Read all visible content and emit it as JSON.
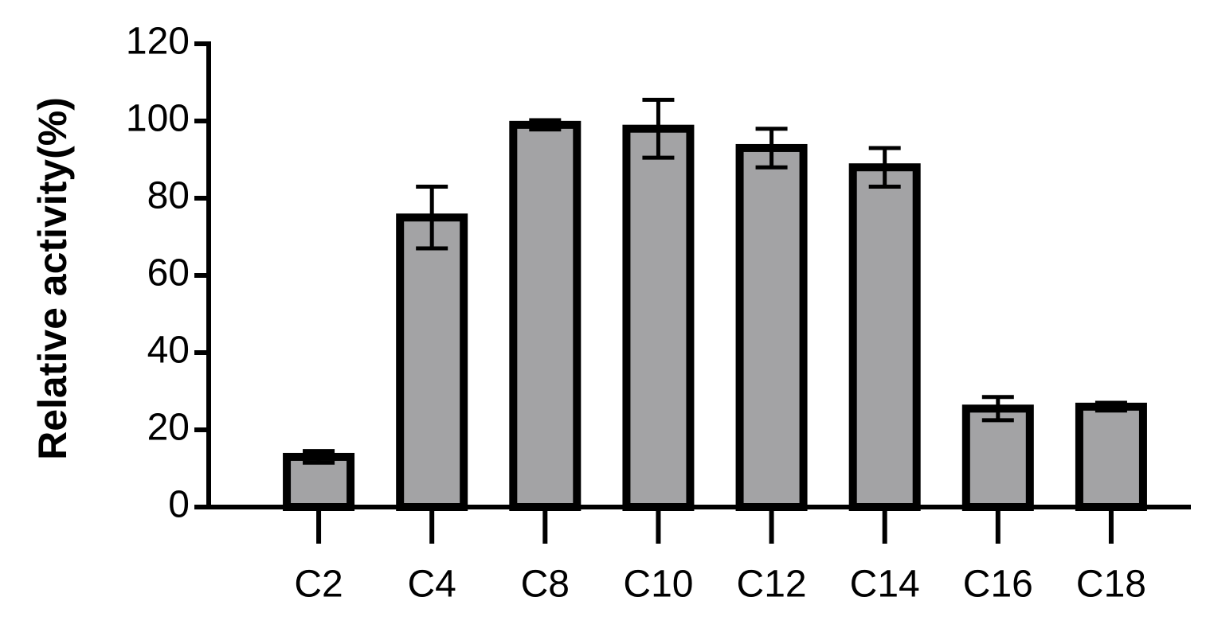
{
  "chart_data": {
    "type": "bar",
    "y_label": "Relative activity(%)",
    "categories": [
      "C2",
      "C4",
      "C8",
      "C10",
      "C12",
      "C14",
      "C16",
      "C18"
    ],
    "values": [
      13,
      75,
      99,
      98,
      93,
      88,
      25.5,
      26
    ],
    "errors": [
      1.5,
      8,
      1.2,
      7.5,
      5,
      5,
      3,
      1
    ],
    "color": "#a3a3a5",
    "ylim": [
      0,
      120
    ],
    "yticks": [
      0,
      20,
      40,
      60,
      80,
      100,
      120
    ]
  }
}
